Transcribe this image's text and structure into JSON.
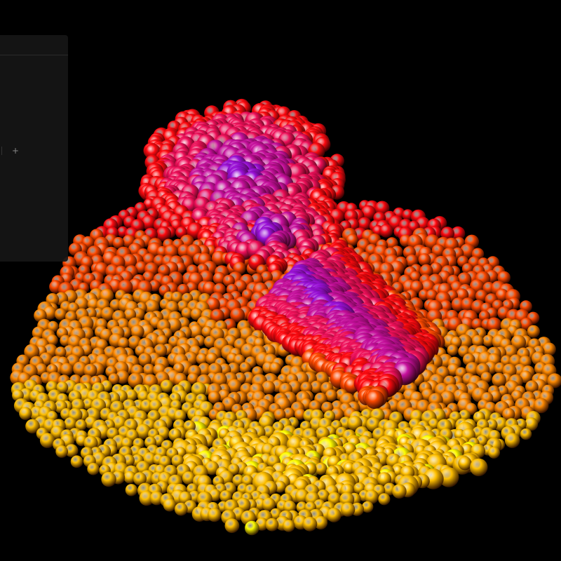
{
  "panel": {
    "title": "",
    "field_label": "",
    "add_icon": "plus-icon",
    "add_label": ""
  },
  "scene": {
    "background": "#000000",
    "palette": [
      "#FFFF00",
      "#FFC000",
      "#FF8A00",
      "#FF4A00",
      "#FF0A10",
      "#F0105A",
      "#C8109E",
      "#9A10D8"
    ],
    "object": "sphere-particle-surface"
  }
}
